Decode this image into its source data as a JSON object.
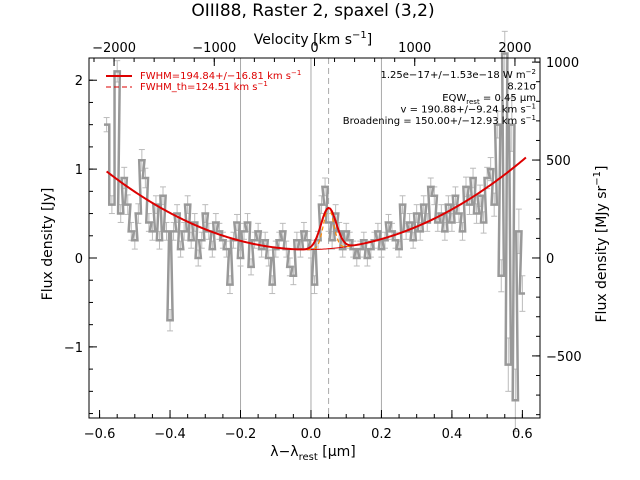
{
  "chart_data": {
    "type": "line",
    "title": "OIII88, Raster 2, spaxel (3,2)",
    "xlabel": "λ−λ",
    "xlabel_sub": "rest",
    "xlabel_unit": "[μm]",
    "ylabel": "Flux density [Jy]",
    "top_xlabel": "Velocity [km s",
    "top_xlabel_sup": "−1",
    "top_xlabel_end": "]",
    "right_ylabel": "Flux density [MJy sr",
    "right_ylabel_sup": "−1",
    "right_ylabel_end": "]",
    "xlim": [
      -0.63,
      0.65
    ],
    "ylim": [
      -1.8,
      2.25
    ],
    "top_xlim": [
      -2250,
      2250
    ],
    "right_ylim": [
      -817,
      1021
    ],
    "x_ticks": [
      {
        "v": -0.6,
        "label": "−0.6"
      },
      {
        "v": -0.4,
        "label": "−0.4"
      },
      {
        "v": -0.2,
        "label": "−0.2"
      },
      {
        "v": 0.0,
        "label": "0.0"
      },
      {
        "v": 0.2,
        "label": "0.2"
      },
      {
        "v": 0.4,
        "label": "0.4"
      },
      {
        "v": 0.6,
        "label": "0.6"
      }
    ],
    "y_ticks": [
      {
        "v": -1,
        "label": "−1"
      },
      {
        "v": 0,
        "label": "0"
      },
      {
        "v": 1,
        "label": "1"
      },
      {
        "v": 2,
        "label": "2"
      }
    ],
    "top_ticks": [
      {
        "v": -2000,
        "label": "−2000"
      },
      {
        "v": -1000,
        "label": "−1000"
      },
      {
        "v": 0,
        "label": "0"
      },
      {
        "v": 1000,
        "label": "1000"
      },
      {
        "v": 2000,
        "label": "2000"
      }
    ],
    "right_ticks": [
      {
        "v": -500,
        "label": "−500"
      },
      {
        "v": 0,
        "label": "0"
      },
      {
        "v": 500,
        "label": "500"
      },
      {
        "v": 1000,
        "label": "1000"
      }
    ],
    "vlines": [
      -0.2,
      0.0,
      0.2
    ],
    "line_center": 0.05,
    "legend": [
      {
        "label": "FWHM=194.84+/−16.81 km s",
        "sup": "−1",
        "style": "solid",
        "color": "#dd0000"
      },
      {
        "label": "FWHM_th=124.51 km s",
        "sup": "−1",
        "style": "dashed",
        "color": "#dd0000"
      }
    ],
    "annotations": [
      {
        "text": "1.25e−17+/−1.53e−18 W m",
        "sup": "−2"
      },
      {
        "text": "8.21σ",
        "sup": ""
      },
      {
        "text": "EQW",
        "sub": "rest",
        "tail": " = 0.45 μm"
      },
      {
        "text": "v = 190.88+/−9.24 km s",
        "sup": "−1"
      },
      {
        "text": "Broadening = 150.00+/−12.93 km s",
        "sup": "−1"
      }
    ],
    "colors": {
      "data": "#999999",
      "fit": "#dd0000",
      "fit_th": "#ff8800",
      "vline": "#aaaaaa",
      "center": "#aaaaaa"
    },
    "series": [
      {
        "x": [
          -0.58,
          -0.565,
          -0.55,
          -0.54,
          -0.53,
          -0.52,
          -0.51,
          -0.5,
          -0.49,
          -0.48,
          -0.47,
          -0.46,
          -0.45,
          -0.44,
          -0.43,
          -0.42,
          -0.41,
          -0.4,
          -0.39,
          -0.38,
          -0.37,
          -0.36,
          -0.35,
          -0.34,
          -0.33,
          -0.32,
          -0.31,
          -0.3,
          -0.29,
          -0.28,
          -0.27,
          -0.26,
          -0.25,
          -0.24,
          -0.23,
          -0.22,
          -0.21,
          -0.2,
          -0.19,
          -0.18,
          -0.17,
          -0.16,
          -0.15,
          -0.14,
          -0.13,
          -0.12,
          -0.11,
          -0.1,
          -0.09,
          -0.08,
          -0.07,
          -0.06,
          -0.05,
          -0.04,
          -0.03,
          -0.02,
          -0.01,
          0.0,
          0.01,
          0.02,
          0.03,
          0.04,
          0.05,
          0.06,
          0.07,
          0.08,
          0.09,
          0.1,
          0.11,
          0.12,
          0.13,
          0.14,
          0.15,
          0.16,
          0.17,
          0.18,
          0.19,
          0.2,
          0.21,
          0.22,
          0.23,
          0.24,
          0.25,
          0.26,
          0.27,
          0.28,
          0.29,
          0.3,
          0.31,
          0.32,
          0.33,
          0.34,
          0.35,
          0.36,
          0.37,
          0.38,
          0.39,
          0.4,
          0.41,
          0.42,
          0.43,
          0.44,
          0.45,
          0.46,
          0.47,
          0.48,
          0.49,
          0.5,
          0.51,
          0.52,
          0.53,
          0.54,
          0.55,
          0.56,
          0.57,
          0.58,
          0.59,
          0.6
        ],
        "y": [
          1.5,
          0.6,
          2.1,
          0.5,
          0.9,
          0.6,
          0.3,
          0.2,
          0.5,
          1.1,
          0.9,
          0.4,
          0.3,
          0.6,
          0.2,
          0.7,
          0.3,
          -0.7,
          0.3,
          0.5,
          0.1,
          0.3,
          0.6,
          0.2,
          0.4,
          0.0,
          0.2,
          0.5,
          0.3,
          0.1,
          0.4,
          0.3,
          0.2,
          0.1,
          -0.3,
          0.2,
          0.4,
          0.0,
          0.3,
          0.4,
          -0.1,
          0.2,
          0.3,
          0.1,
          0.2,
          0.0,
          -0.3,
          0.1,
          0.2,
          0.3,
          0.1,
          -0.1,
          -0.2,
          0.2,
          0.1,
          0.3,
          0.2,
          0.1,
          -0.3,
          0.2,
          0.6,
          0.8,
          0.4,
          0.2,
          0.5,
          0.3,
          0.1,
          0.3,
          0.2,
          0.1,
          0.0,
          0.1,
          0.2,
          0.0,
          0.1,
          0.2,
          0.3,
          0.1,
          0.2,
          0.4,
          0.3,
          0.2,
          0.1,
          0.6,
          0.3,
          0.4,
          0.2,
          0.5,
          0.3,
          0.6,
          0.4,
          0.8,
          0.7,
          0.4,
          0.5,
          0.3,
          0.6,
          0.4,
          0.7,
          0.5,
          0.3,
          0.8,
          0.6,
          0.9,
          0.5,
          0.7,
          0.4,
          0.9,
          1.0,
          0.6,
          1.5,
          -0.2,
          2.3,
          -1.2,
          1.5,
          -1.6,
          0.3,
          -0.4
        ],
        "err": [
          0.08,
          0.1,
          0.12,
          0.1,
          0.12,
          0.11,
          0.1,
          0.1,
          0.11,
          0.12,
          0.11,
          0.1,
          0.1,
          0.1,
          0.1,
          0.1,
          0.1,
          0.12,
          0.1,
          0.1,
          0.09,
          0.1,
          0.1,
          0.09,
          0.1,
          0.09,
          0.09,
          0.1,
          0.09,
          0.09,
          0.1,
          0.09,
          0.09,
          0.09,
          0.1,
          0.09,
          0.09,
          0.09,
          0.09,
          0.1,
          0.09,
          0.09,
          0.09,
          0.09,
          0.09,
          0.09,
          0.1,
          0.09,
          0.09,
          0.09,
          0.09,
          0.1,
          0.1,
          0.09,
          0.09,
          0.1,
          0.1,
          0.1,
          0.1,
          0.1,
          0.1,
          0.1,
          0.1,
          0.1,
          0.1,
          0.1,
          0.09,
          0.09,
          0.09,
          0.09,
          0.09,
          0.09,
          0.09,
          0.09,
          0.09,
          0.09,
          0.09,
          0.09,
          0.09,
          0.09,
          0.09,
          0.09,
          0.09,
          0.1,
          0.09,
          0.1,
          0.09,
          0.1,
          0.1,
          0.1,
          0.1,
          0.1,
          0.1,
          0.1,
          0.1,
          0.1,
          0.1,
          0.1,
          0.1,
          0.1,
          0.1,
          0.11,
          0.11,
          0.11,
          0.11,
          0.12,
          0.12,
          0.12,
          0.13,
          0.13,
          0.15,
          0.18,
          0.25,
          0.3,
          0.3,
          0.35,
          0.25,
          0.2
        ]
      }
    ],
    "fit": {
      "continuum_coeffs": [
        0.095,
        0.05,
        2.7
      ],
      "x_range": [
        -0.58,
        0.61
      ],
      "gauss_amp": 0.46,
      "gauss_sigma_fwhm": 0.051,
      "gauss_th_sigma_fwhm": 0.034
    }
  }
}
